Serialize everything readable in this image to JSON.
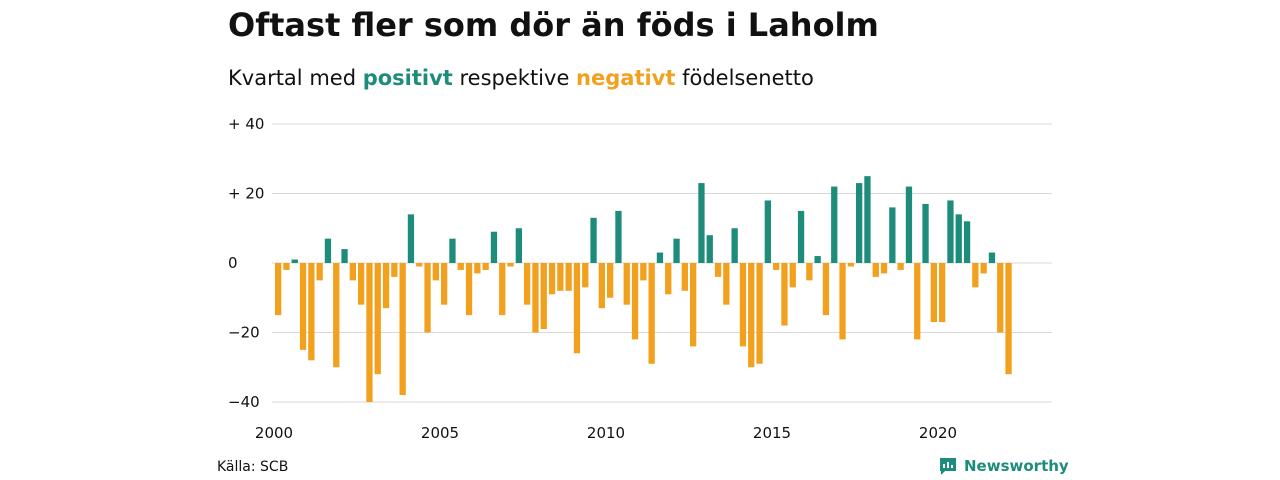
{
  "colors": {
    "positive": "#1e8c7b",
    "negative": "#f2a11e",
    "grid": "#d8d8d8",
    "text": "#111111"
  },
  "title": "Oftast fler som dör än föds i Laholm",
  "subtitle": {
    "prefix": "Kvartal med ",
    "positive_word": "positivt",
    "middle": " respektive ",
    "negative_word": "negativt",
    "suffix": " födelsenetto"
  },
  "source": "Källa: SCB",
  "brand": {
    "name": "Newsworthy",
    "icon": "newsworthy-logo-icon"
  },
  "chart_data": {
    "type": "bar",
    "ylim": [
      -45,
      40
    ],
    "yticks": [
      {
        "value": 40,
        "label": "+ 40"
      },
      {
        "value": 20,
        "label": "+ 20"
      },
      {
        "value": 0,
        "label": "0"
      },
      {
        "value": -20,
        "label": "−20"
      },
      {
        "value": -40,
        "label": "−40"
      }
    ],
    "xticks": [
      {
        "year": 2000,
        "label": "2000"
      },
      {
        "year": 2005,
        "label": "2005"
      },
      {
        "year": 2010,
        "label": "2010"
      },
      {
        "year": 2015,
        "label": "2015"
      },
      {
        "year": 2020,
        "label": "2020"
      }
    ],
    "start_year": 2000,
    "grid": true,
    "values": [
      -15,
      -2,
      1,
      -25,
      -28,
      -5,
      7,
      -30,
      4,
      -5,
      -12,
      -40,
      -32,
      -13,
      -4,
      -38,
      14,
      -1,
      -20,
      -5,
      -12,
      7,
      -2,
      -15,
      -3,
      -2,
      9,
      -15,
      -1,
      10,
      -12,
      -20,
      -19,
      -9,
      -8,
      -8,
      -26,
      -7,
      13,
      -13,
      -10,
      15,
      -12,
      -22,
      -5,
      -29,
      3,
      -9,
      7,
      -8,
      -24,
      23,
      8,
      -4,
      -12,
      10,
      -24,
      -30,
      -29,
      18,
      -2,
      -18,
      -7,
      15,
      -5,
      2,
      -15,
      22,
      -22,
      -1,
      23,
      25,
      -4,
      -3,
      16,
      -2,
      22,
      -22,
      17,
      -17,
      -17,
      18,
      14,
      12,
      -7,
      -3,
      3,
      -20,
      -32
    ]
  }
}
